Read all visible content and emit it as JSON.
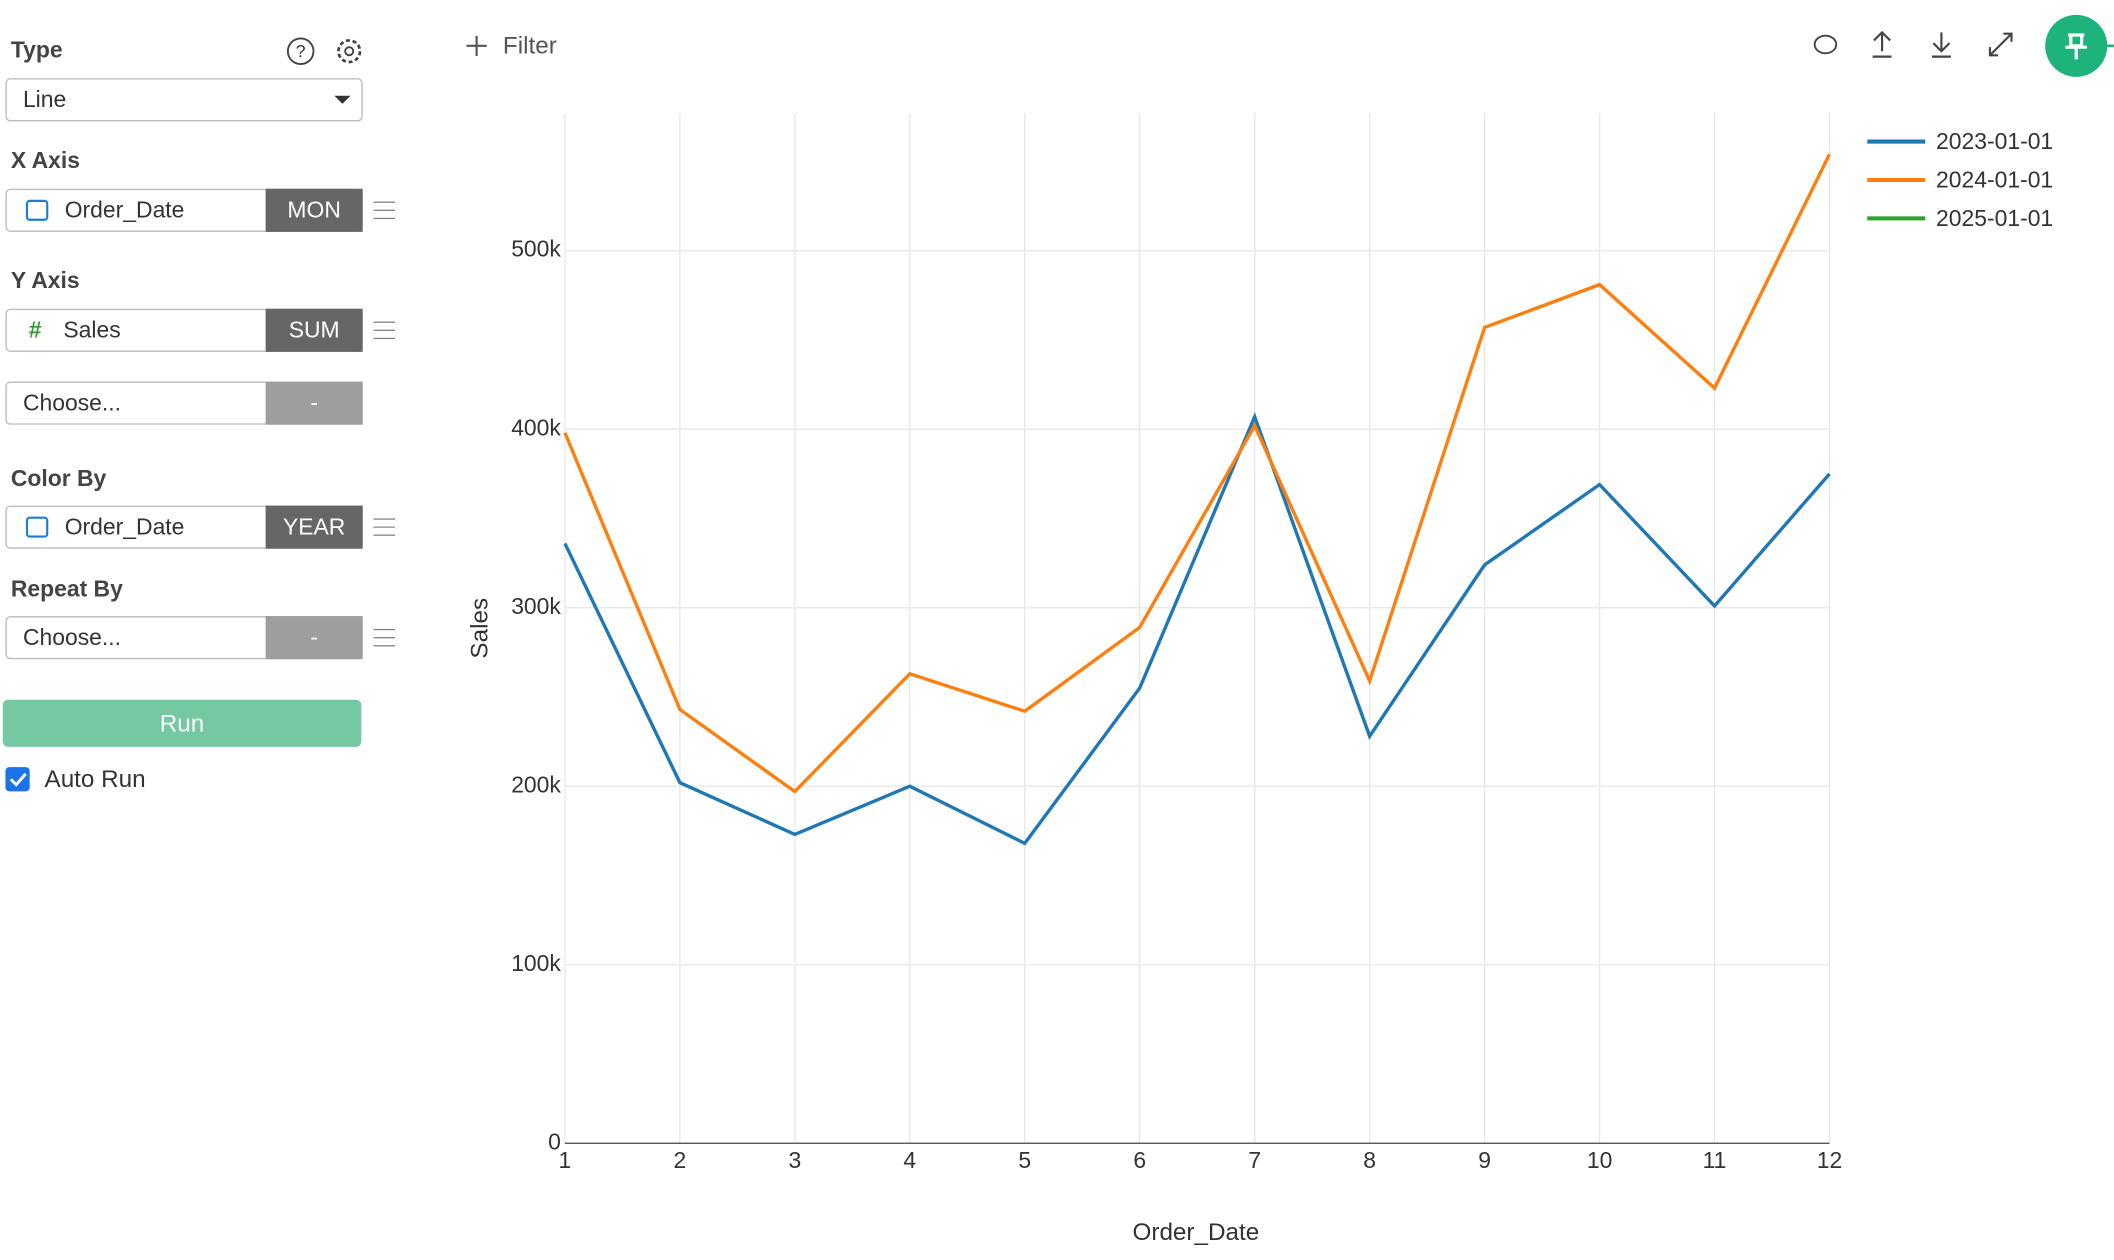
{
  "ui": {
    "type_label": "Type",
    "type_value": "Line",
    "x_axis_label": "X Axis",
    "x_field": "Order_Date",
    "x_agg": "MON",
    "y_axis_label": "Y Axis",
    "y_field": "Sales",
    "y_agg": "SUM",
    "y2_field": "Choose...",
    "y2_agg": "-",
    "color_label": "Color By",
    "color_field": "Order_Date",
    "color_agg": "YEAR",
    "repeat_label": "Repeat By",
    "repeat_field": "Choose...",
    "repeat_agg": "-",
    "run": "Run",
    "auto_run": "Auto Run",
    "filter": "Filter"
  },
  "chart_data": {
    "type": "line",
    "x_label": "Order_Date",
    "y_label": "Sales",
    "x": [
      1,
      2,
      3,
      4,
      5,
      6,
      7,
      8,
      9,
      10,
      11,
      12
    ],
    "series": [
      {
        "name": "2023-01-01",
        "color": "#1f77b4",
        "values": [
          336000,
          202000,
          173000,
          200000,
          168000,
          255000,
          407000,
          228000,
          324000,
          369000,
          301000,
          375000
        ]
      },
      {
        "name": "2024-01-01",
        "color": "#ff7f0e",
        "values": [
          398000,
          243000,
          197000,
          263000,
          242000,
          289000,
          402000,
          259000,
          457000,
          481000,
          423000,
          554000
        ]
      },
      {
        "name": "2025-01-01",
        "color": "#2ca02c",
        "values": [
          null,
          null,
          null,
          null,
          null,
          null,
          null,
          null,
          null,
          null,
          null,
          null
        ]
      }
    ],
    "xlim": [
      1,
      12
    ],
    "xticks": [
      1,
      2,
      3,
      4,
      5,
      6,
      7,
      8,
      9,
      10,
      11,
      12
    ],
    "ylim": [
      0,
      577000
    ],
    "yticks": [
      0,
      {
        "value": 100000,
        "label": "100k"
      },
      {
        "value": 200000,
        "label": "200k"
      },
      {
        "value": 300000,
        "label": "300k"
      },
      {
        "value": 400000,
        "label": "400k"
      },
      {
        "value": 500000,
        "label": "500k"
      }
    ],
    "grid": true,
    "legend": "top-right"
  }
}
